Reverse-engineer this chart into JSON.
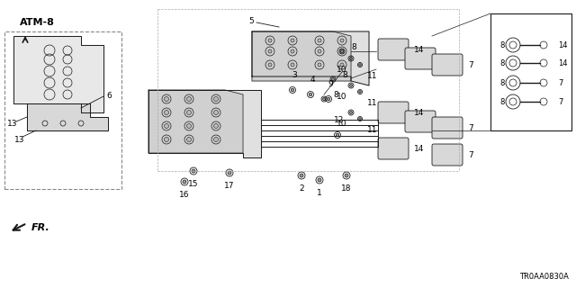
{
  "title": "",
  "bg_color": "#ffffff",
  "atm_label": "ATM-8",
  "fr_label": "FR.",
  "diagram_code": "TR0AA0830A",
  "part_numbers": {
    "top_left_ref": "ATM-8",
    "part_labels": [
      "1",
      "2",
      "3",
      "4",
      "5",
      "6",
      "7",
      "8",
      "9",
      "10",
      "11",
      "12",
      "13",
      "14",
      "15",
      "16",
      "17",
      "18"
    ]
  },
  "line_color": "#1a1a1a",
  "dashed_color": "#555555",
  "text_color": "#000000"
}
